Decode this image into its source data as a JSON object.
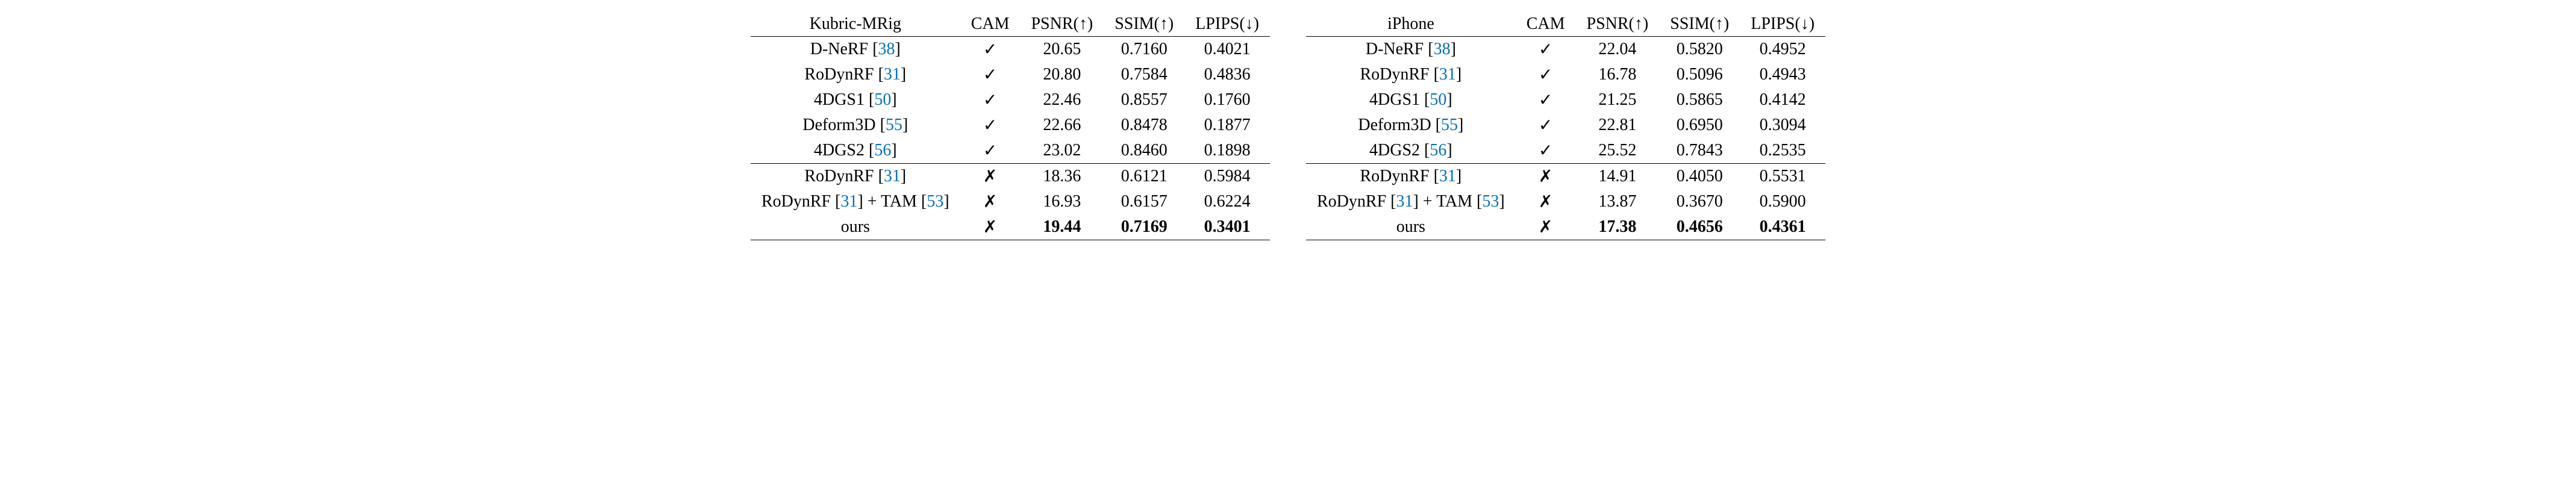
{
  "tables": [
    {
      "header": {
        "dataset": "Kubric-MRig",
        "cam": "CAM",
        "psnr": "PSNR(↑)",
        "ssim": "SSIM(↑)",
        "lpips": "LPIPS(↓)"
      },
      "section1": [
        {
          "method": "D-NeRF",
          "cite1": "38",
          "cam": "✓",
          "psnr": "20.65",
          "ssim": "0.7160",
          "lpips": "0.4021"
        },
        {
          "method": "RoDynRF",
          "cite1": "31",
          "cam": "✓",
          "psnr": "20.80",
          "ssim": "0.7584",
          "lpips": "0.4836"
        },
        {
          "method": "4DGS1",
          "cite1": "50",
          "cam": "✓",
          "psnr": "22.46",
          "ssim": "0.8557",
          "lpips": "0.1760"
        },
        {
          "method": "Deform3D",
          "cite1": "55",
          "cam": "✓",
          "psnr": "22.66",
          "ssim": "0.8478",
          "lpips": "0.1877"
        },
        {
          "method": "4DGS2",
          "cite1": "56",
          "cam": "✓",
          "psnr": "23.02",
          "ssim": "0.8460",
          "lpips": "0.1898"
        }
      ],
      "section2": [
        {
          "method": "RoDynRF",
          "cite1": "31",
          "cam": "✗",
          "psnr": "18.36",
          "ssim": "0.6121",
          "lpips": "0.5984"
        },
        {
          "method": "RoDynRF",
          "cite1": "31",
          "suffix": " + TAM",
          "cite2": "53",
          "cam": "✗",
          "psnr": "16.93",
          "ssim": "0.6157",
          "lpips": "0.6224"
        },
        {
          "method": "ours",
          "cam": "✗",
          "psnr": "19.44",
          "ssim": "0.7169",
          "lpips": "0.3401",
          "bold": true
        }
      ]
    },
    {
      "header": {
        "dataset": "iPhone",
        "cam": "CAM",
        "psnr": "PSNR(↑)",
        "ssim": "SSIM(↑)",
        "lpips": "LPIPS(↓)"
      },
      "section1": [
        {
          "method": "D-NeRF",
          "cite1": "38",
          "cam": "✓",
          "psnr": "22.04",
          "ssim": "0.5820",
          "lpips": "0.4952"
        },
        {
          "method": "RoDynRF",
          "cite1": "31",
          "cam": "✓",
          "psnr": "16.78",
          "ssim": "0.5096",
          "lpips": "0.4943"
        },
        {
          "method": "4DGS1",
          "cite1": "50",
          "cam": "✓",
          "psnr": "21.25",
          "ssim": "0.5865",
          "lpips": "0.4142"
        },
        {
          "method": "Deform3D",
          "cite1": "55",
          "cam": "✓",
          "psnr": "22.81",
          "ssim": "0.6950",
          "lpips": "0.3094"
        },
        {
          "method": "4DGS2",
          "cite1": "56",
          "cam": "✓",
          "psnr": "25.52",
          "ssim": "0.7843",
          "lpips": "0.2535"
        }
      ],
      "section2": [
        {
          "method": "RoDynRF",
          "cite1": "31",
          "cam": "✗",
          "psnr": "14.91",
          "ssim": "0.4050",
          "lpips": "0.5531"
        },
        {
          "method": "RoDynRF",
          "cite1": "31",
          "suffix": " + TAM",
          "cite2": "53",
          "cam": "✗",
          "psnr": "13.87",
          "ssim": "0.3670",
          "lpips": "0.5900"
        },
        {
          "method": "ours",
          "cam": "✗",
          "psnr": "17.38",
          "ssim": "0.4656",
          "lpips": "0.4361",
          "bold": true
        }
      ]
    }
  ],
  "colors": {
    "cite": "#0070c0",
    "text": "#000000",
    "background": "#ffffff",
    "border": "#000000"
  }
}
